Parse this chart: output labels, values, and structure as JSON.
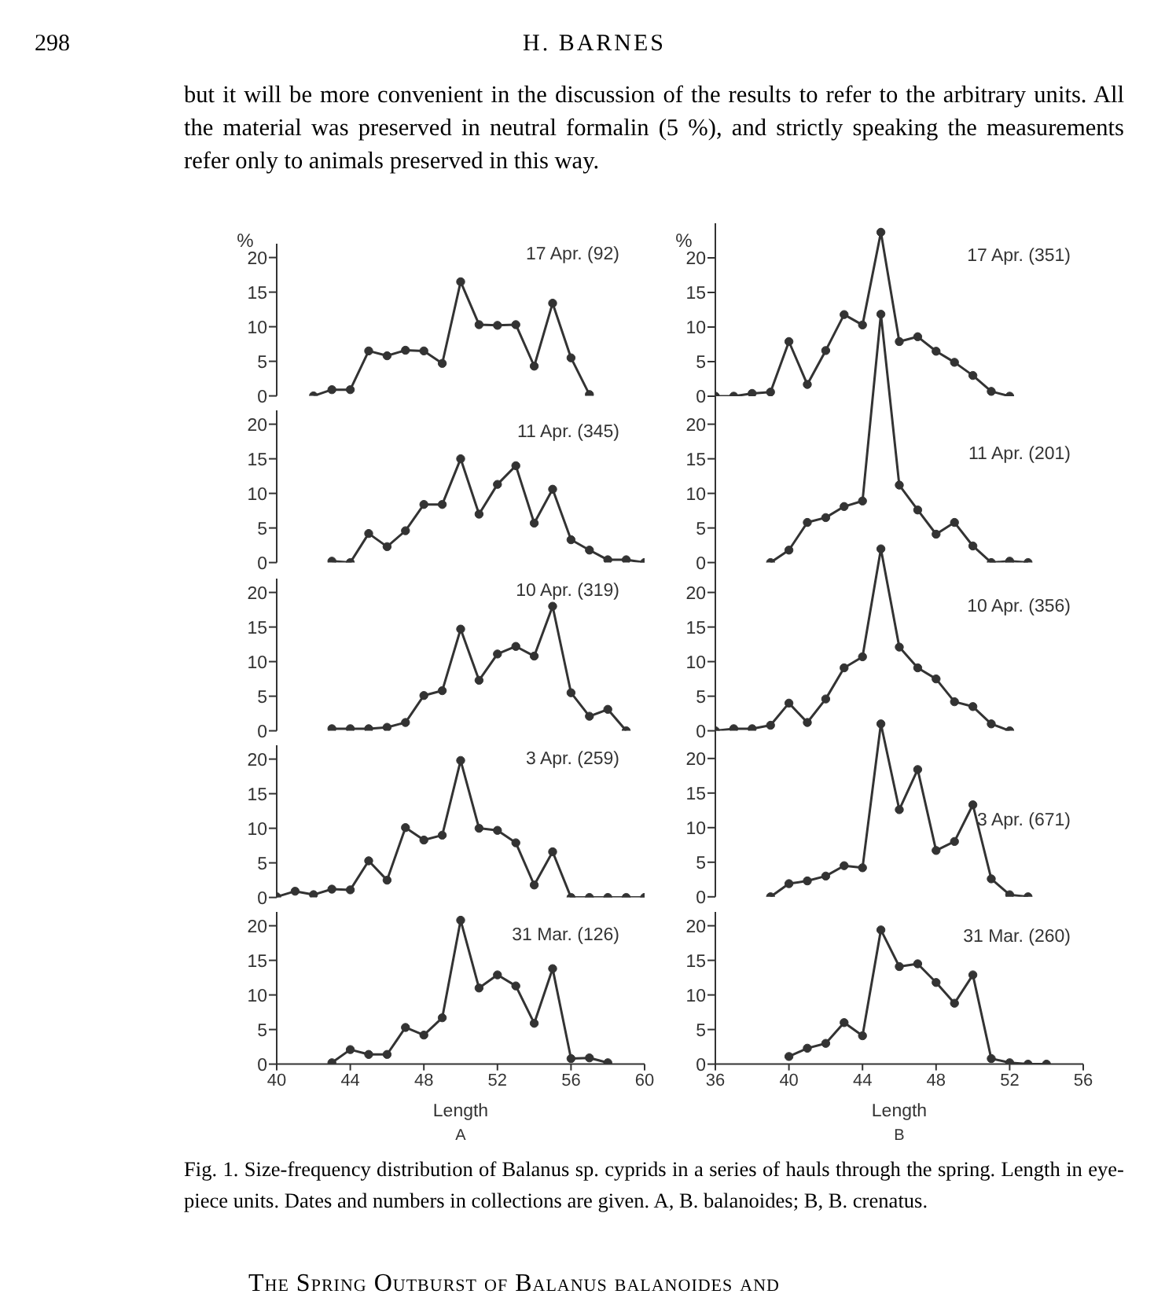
{
  "chart_data": [
    {
      "type": "other",
      "annotations": [
        "298",
        "H. BARNES",
        "but it will be more convenient in the discussion of the results to refer to the arbitrary units. All the material was preserved in neutral formalin (5 %), and strictly speaking the measurements refer only to animals preserved in this way."
      ]
    },
    {
      "type": "line",
      "title": "17 Apr. (92)",
      "ylabel": "%",
      "x": [
        42,
        43,
        44,
        45,
        46,
        47,
        48,
        49,
        50,
        51,
        52,
        53,
        54,
        55,
        56,
        57
      ],
      "values": [
        0,
        0.9,
        0.9,
        6.5,
        5.8,
        6.6,
        6.5,
        4.7,
        16.5,
        10.3,
        10.2,
        10.3,
        4.3,
        13.4,
        5.5,
        0.2
      ],
      "color": "#333333",
      "marker": "circle",
      "xlim": [
        40,
        60
      ],
      "ylim": [
        0,
        22
      ],
      "yticks": [
        0,
        5,
        10,
        15,
        20
      ],
      "tick_labels": "y"
    },
    {
      "type": "line",
      "title": "11 Apr. (345)",
      "x": [
        43,
        44,
        45,
        46,
        47,
        48,
        49,
        50,
        51,
        52,
        53,
        54,
        55,
        56,
        57,
        58,
        59,
        60
      ],
      "values": [
        0.2,
        0,
        4.2,
        2.3,
        4.6,
        8.4,
        8.4,
        15,
        7,
        11.3,
        14,
        5.7,
        10.6,
        3.3,
        1.8,
        0.4,
        0.4,
        0
      ],
      "color": "#333333",
      "marker": "circle",
      "xlim": [
        40,
        60
      ],
      "ylim": [
        0,
        22
      ],
      "yticks": [
        0,
        5,
        10,
        15,
        20
      ],
      "tick_labels": "y"
    },
    {
      "type": "line",
      "title": "10 Apr. (319)",
      "x": [
        43,
        44,
        45,
        46,
        47,
        48,
        49,
        50,
        51,
        52,
        53,
        54,
        55,
        56,
        57,
        58,
        59
      ],
      "values": [
        0.3,
        0.3,
        0.3,
        0.5,
        1.2,
        5.1,
        5.8,
        14.7,
        7.3,
        11.1,
        12.2,
        10.8,
        18,
        5.5,
        2.1,
        3.1,
        0
      ],
      "color": "#333333",
      "marker": "circle",
      "xlim": [
        40,
        60
      ],
      "ylim": [
        0,
        22
      ],
      "yticks": [
        0,
        5,
        10,
        15,
        20
      ],
      "tick_labels": "y"
    },
    {
      "type": "line",
      "title": "3 Apr. (259)",
      "x": [
        40,
        41,
        42,
        43,
        44,
        45,
        46,
        47,
        48,
        49,
        50,
        51,
        52,
        53,
        54,
        55,
        56,
        57,
        58,
        59,
        60
      ],
      "values": [
        0.1,
        0.9,
        0.4,
        1.2,
        1.1,
        5.3,
        2.5,
        10.1,
        8.3,
        9,
        19.8,
        10,
        9.7,
        7.9,
        1.8,
        6.6,
        0,
        0,
        0,
        0,
        0
      ],
      "color": "#333333",
      "marker": "circle",
      "xlim": [
        40,
        60
      ],
      "ylim": [
        0,
        22
      ],
      "yticks": [
        0,
        5,
        10,
        15,
        20
      ],
      "tick_labels": "y"
    },
    {
      "type": "line",
      "title": "31 Mar. (126)",
      "xlabel": "Length",
      "annotations": [
        "A"
      ],
      "x": [
        43,
        44,
        45,
        46,
        47,
        48,
        49,
        50,
        51,
        52,
        53,
        54,
        55,
        56,
        57,
        58
      ],
      "values": [
        0.2,
        2.1,
        1.4,
        1.4,
        5.3,
        4.2,
        6.7,
        20.8,
        11,
        12.9,
        11.3,
        5.9,
        13.8,
        0.8,
        0.9,
        0.2
      ],
      "color": "#333333",
      "marker": "circle",
      "xlim": [
        40,
        60
      ],
      "xticks": [
        40,
        44,
        48,
        52,
        56,
        60
      ],
      "ylim": [
        0,
        22
      ],
      "yticks": [
        0,
        5,
        10,
        15,
        20
      ]
    },
    {
      "type": "line",
      "title": "17 Apr. (351)",
      "ylabel": "%",
      "x": [
        36,
        37,
        38,
        39,
        40,
        41,
        42,
        43,
        44,
        45,
        46,
        47,
        48,
        49,
        50,
        51,
        52
      ],
      "values": [
        0,
        0,
        0.4,
        0.6,
        7.9,
        1.7,
        6.6,
        11.8,
        10.3,
        23.7,
        7.9,
        8.6,
        6.5,
        4.9,
        3,
        0.7,
        0
      ],
      "color": "#333333",
      "marker": "circle",
      "xlim": [
        36,
        56
      ],
      "ylim": [
        0,
        25
      ],
      "yticks": [
        0,
        5,
        10,
        15,
        20
      ],
      "tick_labels": "y"
    },
    {
      "type": "line",
      "title": "11 Apr. (201)",
      "x": [
        39,
        40,
        41,
        42,
        43,
        44,
        45,
        46,
        47,
        48,
        49,
        50,
        51,
        52,
        53
      ],
      "values": [
        0,
        1.8,
        5.8,
        6.5,
        8.1,
        8.9,
        35.9,
        11.2,
        7.6,
        4.1,
        5.8,
        2.4,
        0,
        0.2,
        0
      ],
      "color": "#333333",
      "marker": "circle",
      "xlim": [
        36,
        56
      ],
      "ylim": [
        0,
        37
      ],
      "yticks": [
        0,
        5,
        10,
        15,
        20
      ],
      "tick_labels": "y"
    },
    {
      "type": "line",
      "title": "10 Apr. (356)",
      "x": [
        36,
        37,
        38,
        39,
        40,
        41,
        42,
        43,
        44,
        45,
        46,
        47,
        48,
        49,
        50,
        51,
        52
      ],
      "values": [
        0,
        0.3,
        0.3,
        0.8,
        4,
        1.2,
        4.6,
        9.1,
        10.7,
        26.3,
        12.1,
        9.1,
        7.5,
        4.2,
        3.5,
        1,
        0
      ],
      "color": "#333333",
      "marker": "circle",
      "xlim": [
        36,
        56
      ],
      "ylim": [
        0,
        27
      ],
      "yticks": [
        0,
        5,
        10,
        15,
        20
      ],
      "tick_labels": "y"
    },
    {
      "type": "line",
      "title": "3 Apr. (671)",
      "x": [
        39,
        40,
        41,
        42,
        43,
        44,
        45,
        46,
        47,
        48,
        49,
        50,
        51,
        52,
        53
      ],
      "values": [
        0,
        1.9,
        2.3,
        3,
        4.5,
        4.2,
        25,
        12.6,
        18.4,
        6.7,
        8,
        13.3,
        2.6,
        0.3,
        0
      ],
      "color": "#333333",
      "marker": "circle",
      "xlim": [
        36,
        56
      ],
      "ylim": [
        0,
        26
      ],
      "yticks": [
        0,
        5,
        10,
        15,
        20
      ],
      "tick_labels": "y"
    },
    {
      "type": "line",
      "title": "31 Mar. (260)",
      "xlabel": "Length",
      "annotations": [
        "B"
      ],
      "x": [
        40,
        41,
        42,
        43,
        44,
        45,
        46,
        47,
        48,
        49,
        50,
        51,
        52,
        53,
        54
      ],
      "values": [
        1.1,
        2.3,
        3,
        6,
        4.1,
        19.4,
        14.1,
        14.5,
        11.8,
        8.8,
        12.9,
        0.8,
        0.2,
        0,
        0
      ],
      "color": "#333333",
      "marker": "circle",
      "xlim": [
        36,
        56
      ],
      "xticks": [
        36,
        40,
        44,
        48,
        52,
        56
      ],
      "ylim": [
        0,
        22
      ],
      "yticks": [
        0,
        5,
        10,
        15,
        20
      ]
    },
    {
      "type": "other",
      "annotations": [
        "Fig. 1. Size-frequency distribution of Balanus sp. cyprids in a series of hauls through the spring. Length in eye-piece units. Dates and numbers in collections are given. A, B. balanoides; B, B. crenatus.",
        "The Spring Outburst of Balanus balanoides and"
      ]
    }
  ]
}
